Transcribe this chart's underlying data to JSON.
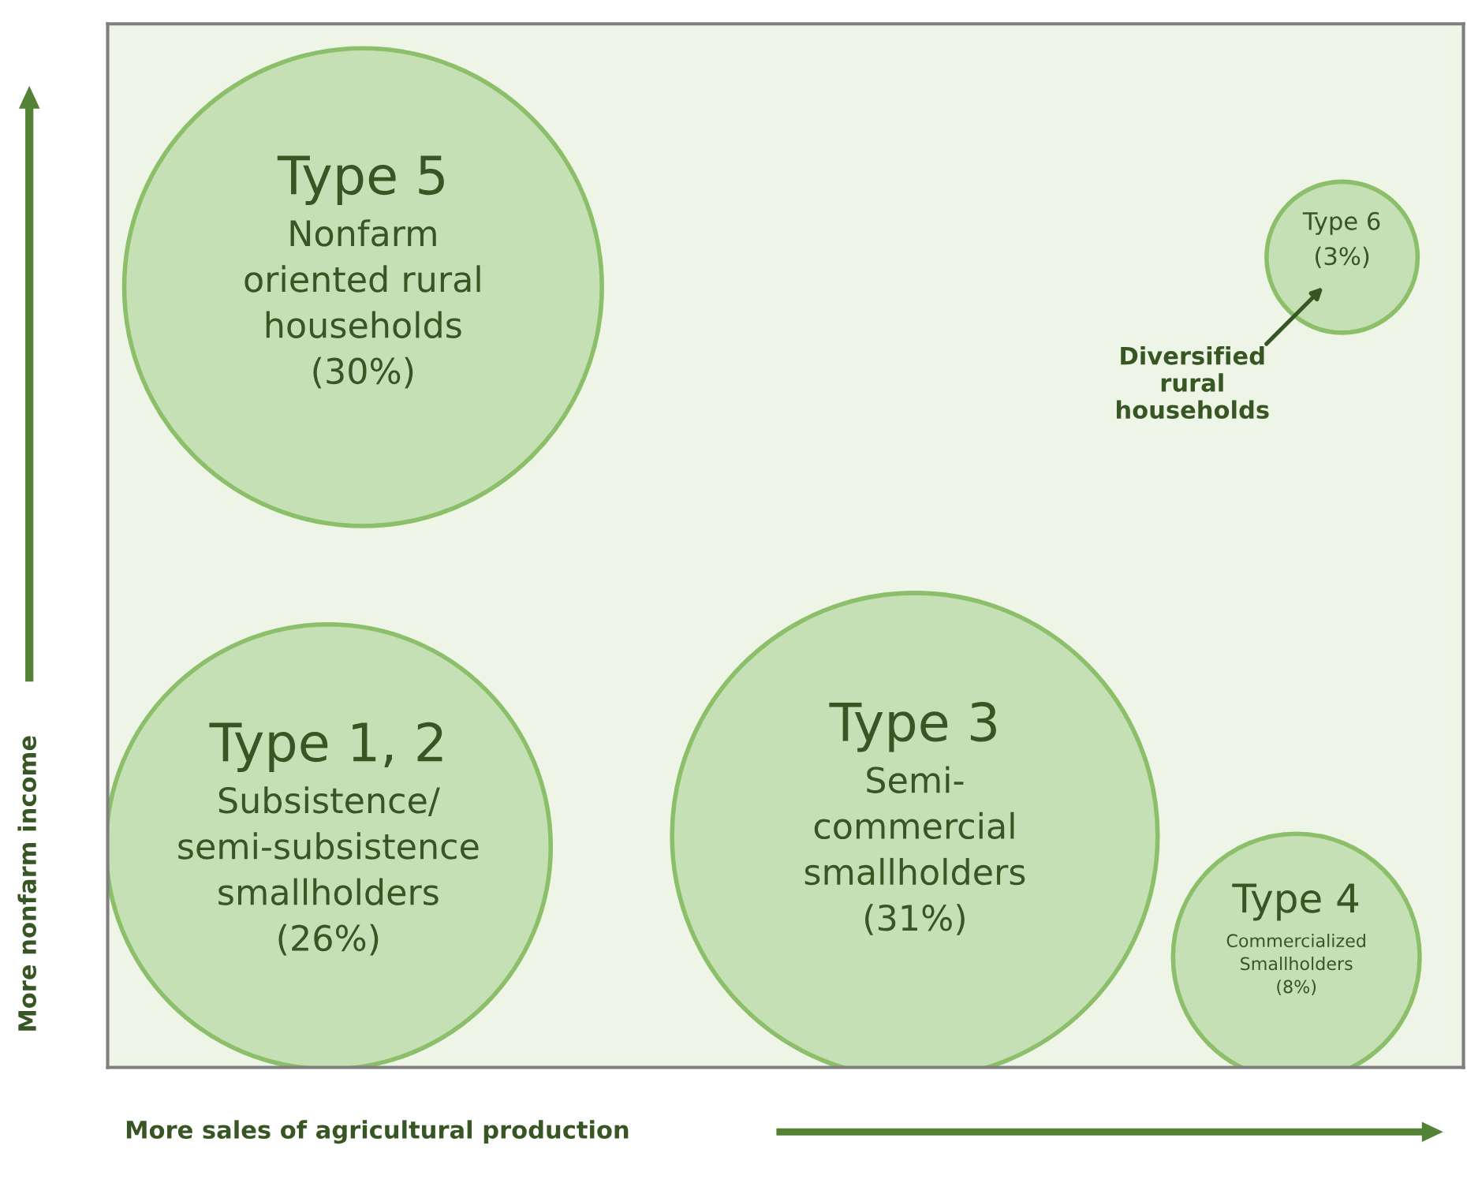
{
  "chart_data": {
    "type": "other",
    "xlabel": "More sales of agricultural production",
    "ylabel": "More nonfarm income",
    "categories": [
      "Type 5\nNonfarm\noriented rural\nhouseholds",
      "Type 1, 2\nSubsistence/\nsemi-subsistence\nsmallholders",
      "Type 3\nSemi-\ncommercial\nsmallholders",
      "Type 4\nCommercialized\nSmallholders",
      "Type 6"
    ],
    "values": [
      30,
      26,
      31,
      8,
      3
    ],
    "value_labels": [
      "(30%)",
      "(26%)",
      "(31%)",
      "(8%)",
      "(3%)"
    ],
    "colors": [
      "#c5e0b4",
      "#c5e0b4",
      "#c5e0b4",
      "#c5e0b4",
      "#c5e0b4"
    ],
    "annotations": [
      "Diversified\nrural\nhouseholds"
    ]
  }
}
